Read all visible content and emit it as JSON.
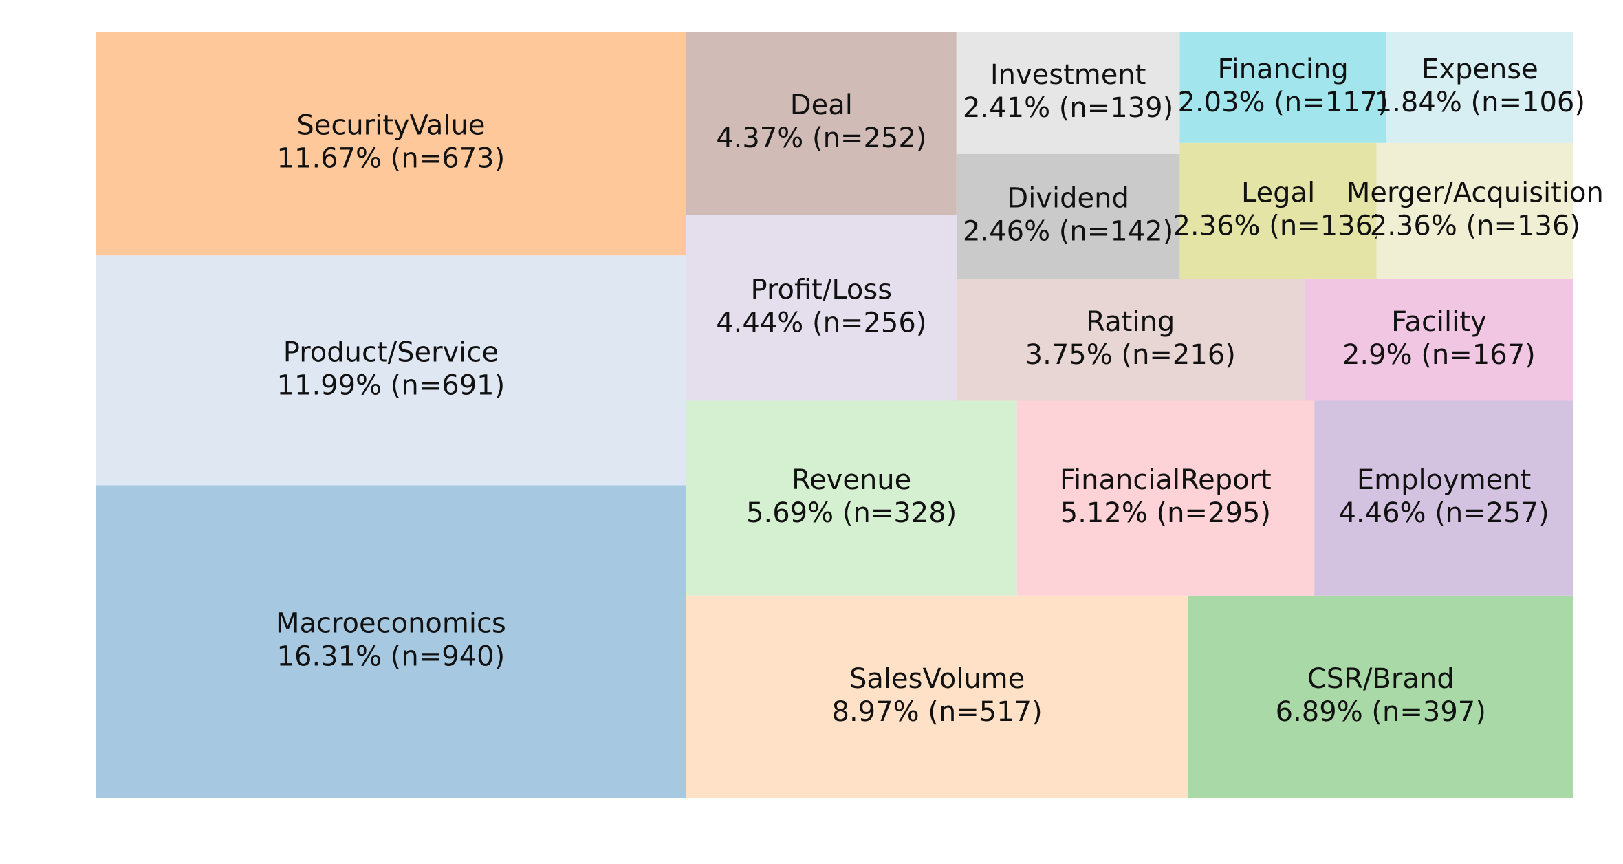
{
  "chart_data": {
    "type": "treemap",
    "title": "",
    "grid": false,
    "legend": "none",
    "items": [
      {
        "label": "Macroeconomics",
        "value_text": "16.31% (n=940)",
        "percent": 16.31,
        "n": 940,
        "color": "#a6c8e0"
      },
      {
        "label": "Product/Service",
        "value_text": "11.99% (n=691)",
        "percent": 11.99,
        "n": 691,
        "color": "#dfe7f3"
      },
      {
        "label": "SecurityValue",
        "value_text": "11.67% (n=673)",
        "percent": 11.67,
        "n": 673,
        "color": "#fec89b"
      },
      {
        "label": "SalesVolume",
        "value_text": "8.97% (n=517)",
        "percent": 8.97,
        "n": 517,
        "color": "#fee1c6"
      },
      {
        "label": "CSR/Brand",
        "value_text": "6.89% (n=397)",
        "percent": 6.89,
        "n": 397,
        "color": "#a8d9a6"
      },
      {
        "label": "Revenue",
        "value_text": "5.69% (n=328)",
        "percent": 5.69,
        "n": 328,
        "color": "#d4f0d0"
      },
      {
        "label": "FinancialReport",
        "value_text": "5.12% (n=295)",
        "percent": 5.12,
        "n": 295,
        "color": "#fed3d7"
      },
      {
        "label": "Employment",
        "value_text": "4.46% (n=257)",
        "percent": 4.46,
        "n": 257,
        "color": "#d4c2e1"
      },
      {
        "label": "Profit/Loss",
        "value_text": "4.44% (n=256)",
        "percent": 4.44,
        "n": 256,
        "color": "#e5deed"
      },
      {
        "label": "Deal",
        "value_text": "4.37% (n=252)",
        "percent": 4.37,
        "n": 252,
        "color": "#d1bbb6"
      },
      {
        "label": "Rating",
        "value_text": "3.75% (n=216)",
        "percent": 3.75,
        "n": 216,
        "color": "#e8d6d5"
      },
      {
        "label": "Facility",
        "value_text": "2.9% (n=167)",
        "percent": 2.9,
        "n": 167,
        "color": "#f0c6e3"
      },
      {
        "label": "Dividend",
        "value_text": "2.46% (n=142)",
        "percent": 2.46,
        "n": 142,
        "color": "#cacaca"
      },
      {
        "label": "Investment",
        "value_text": "2.41% (n=139)",
        "percent": 2.41,
        "n": 139,
        "color": "#e6e6e6"
      },
      {
        "label": "Legal",
        "value_text": "2.36% (n=136)",
        "percent": 2.36,
        "n": 136,
        "color": "#e3e4a5"
      },
      {
        "label": "Merger/Acquisition",
        "value_text": "2.36% (n=136)",
        "percent": 2.36,
        "n": 136,
        "color": "#f0efd3"
      },
      {
        "label": "Financing",
        "value_text": "2.03% (n=117)",
        "percent": 2.03,
        "n": 117,
        "color": "#a3e5ec"
      },
      {
        "label": "Expense",
        "value_text": "1.84% (n=106)",
        "percent": 1.84,
        "n": 106,
        "color": "#d7eef3"
      }
    ]
  }
}
